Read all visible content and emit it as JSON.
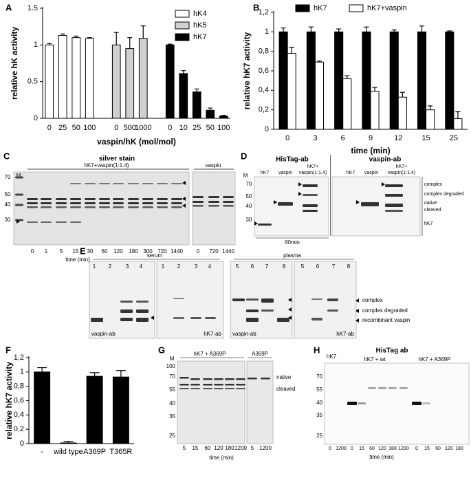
{
  "chart_data": [
    {
      "type": "bar",
      "panel": "A",
      "y_label": "relative hK activity",
      "x_label": "vaspin/hK (mol/mol)",
      "categories": [
        "0",
        "25",
        "50",
        "100",
        null,
        "0",
        "500",
        "1000",
        null,
        "0",
        "10",
        "25",
        "50",
        "100"
      ],
      "series": [
        {
          "name": "hK4",
          "color": "#ffffff",
          "values": [
            1.0,
            1.13,
            1.1,
            1.09,
            null,
            null,
            null,
            null,
            null,
            null,
            null,
            null,
            null,
            null
          ],
          "errors": [
            0.02,
            0.02,
            0.02,
            0.01,
            null,
            null,
            null,
            null,
            null,
            null,
            null,
            null,
            null,
            null
          ]
        },
        {
          "name": "hK5",
          "color": "#d0d0d0",
          "values": [
            null,
            null,
            null,
            null,
            null,
            1.0,
            0.95,
            1.09,
            null,
            null,
            null,
            null,
            null,
            null
          ],
          "errors": [
            null,
            null,
            null,
            null,
            null,
            0.17,
            0.15,
            0.17,
            null,
            null,
            null,
            null,
            null,
            null
          ]
        },
        {
          "name": "hK7",
          "color": "#000000",
          "values": [
            null,
            null,
            null,
            null,
            null,
            null,
            null,
            null,
            null,
            1.0,
            0.61,
            0.36,
            0.11,
            0.03
          ],
          "errors": [
            null,
            null,
            null,
            null,
            null,
            null,
            null,
            null,
            null,
            0.01,
            0.04,
            0.04,
            0.03,
            0.01
          ]
        }
      ],
      "ylim": [
        0,
        1.5
      ],
      "yticks": [
        0,
        0.5,
        1,
        1.5
      ],
      "legend": "upper right"
    },
    {
      "type": "bar",
      "panel": "B",
      "y_label": "relative hK7 activity",
      "x_label": "time (min)",
      "categories": [
        "0",
        "3",
        "6",
        "9",
        "12",
        "15",
        "25"
      ],
      "series": [
        {
          "name": "hK7",
          "color": "#000000",
          "values": [
            1.0,
            1.0,
            1.0,
            1.0,
            1.0,
            1.0,
            1.0
          ],
          "errors": [
            0.04,
            0.05,
            0.03,
            0.05,
            0.02,
            0.06,
            0.01
          ]
        },
        {
          "name": "hK7+vaspin",
          "color": "#ffffff",
          "values": [
            0.78,
            0.69,
            0.52,
            0.39,
            0.33,
            0.2,
            0.11
          ],
          "errors": [
            0.06,
            0.01,
            0.03,
            0.04,
            0.05,
            0.04,
            0.07
          ]
        }
      ],
      "ylim": [
        0,
        1.2
      ],
      "yticks": [
        0,
        {
          "value": 0.2,
          "label": "0,2"
        },
        {
          "value": 0.4,
          "label": "0,4"
        },
        {
          "value": 0.6,
          "label": "0,6"
        },
        {
          "value": 0.8,
          "label": "0,8"
        },
        1,
        {
          "value": 1.2,
          "label": "1,2"
        }
      ],
      "legend": "top"
    },
    {
      "type": "bar",
      "panel": "F",
      "y_label": "relative hK7 activity",
      "categories": [
        "-",
        "wild type",
        "A369P",
        "T365R"
      ],
      "values": [
        1.0,
        0.01,
        0.94,
        0.93
      ],
      "errors": [
        0.06,
        0.02,
        0.05,
        0.09
      ],
      "color": "#000000",
      "ylim": [
        0,
        1.2
      ],
      "yticks": [
        0,
        {
          "value": 0.2,
          "label": "0,2"
        },
        {
          "value": 0.4,
          "label": "0,4"
        },
        {
          "value": 0.6,
          "label": "0,6"
        },
        {
          "value": 0.8,
          "label": "0,8"
        },
        1,
        {
          "value": 1.2,
          "label": "1,2"
        }
      ]
    }
  ],
  "panel_c": {
    "label": "C",
    "heading": "silver stain",
    "group_1": "hK7+vaspin(1:1.4)",
    "group_2": "vaspin",
    "marker_lane": "M",
    "markers": [
      "70",
      "50",
      "40",
      "30"
    ],
    "lanes": [
      "0",
      "1",
      "5",
      "15",
      "30",
      "60",
      "120",
      "180",
      "300",
      "720",
      "1440",
      "0",
      "720",
      "1440"
    ],
    "x_label": "time (min)"
  },
  "panel_d": {
    "label": "D",
    "blot_1_heading": "HisTag-ab",
    "blot_2_heading": "vaspin-ab",
    "marker_lane": "M",
    "markers": [
      "70",
      "50",
      "40",
      "30"
    ],
    "blot_1_lanes": [
      "hK7",
      "vaspin",
      "hK7+",
      "vaspin(1:1.4)"
    ],
    "blot_2_lanes": [
      "hK7",
      "vaspin",
      "hK7+",
      "vaspin(1:1.4)"
    ],
    "band_labels": [
      "complex",
      "complex degraded",
      "native",
      "cleaved",
      "hK7"
    ],
    "time": "60min"
  },
  "panel_e": {
    "label": "E",
    "group_1": "serum",
    "group_2": "plasma",
    "blot_1_lanes": [
      "1",
      "2",
      "3",
      "4"
    ],
    "blot_2_lanes": [
      "1",
      "2",
      "3",
      "4"
    ],
    "blot_3_lanes": [
      "5",
      "6",
      "7",
      "8"
    ],
    "blot_4_lanes": [
      "5",
      "6",
      "7",
      "8"
    ],
    "antibodies": [
      "vaspin-ab",
      "hK7-ab",
      "vaspin-ab",
      "hK7-ab"
    ],
    "band_labels": [
      "complex",
      "complex degraded",
      "recombinant vaspin"
    ]
  },
  "panel_g": {
    "label": "G",
    "marker_lane": "M",
    "group_1": "hK7 + A369P",
    "group_2": "A369P",
    "markers": [
      "100",
      "70",
      "55",
      "40",
      "35",
      "25"
    ],
    "lanes": [
      "5",
      "15",
      "60",
      "120",
      "180",
      "1200",
      "5",
      "1200"
    ],
    "band_labels": [
      "native",
      "cleaved"
    ],
    "x_label": "time (min)"
  },
  "panel_h": {
    "label": "H",
    "heading": "HisTag ab",
    "groups": [
      "hK7",
      "hK7 + wt",
      "hK7 + A369P"
    ],
    "markers": [
      "70",
      "55",
      "40",
      "35",
      "25"
    ],
    "lanes": [
      "0",
      "1200",
      "0",
      "15",
      "60",
      "120",
      "180",
      "1200",
      "0",
      "15",
      "60",
      "120",
      "180"
    ],
    "x_label": "time (min)"
  }
}
